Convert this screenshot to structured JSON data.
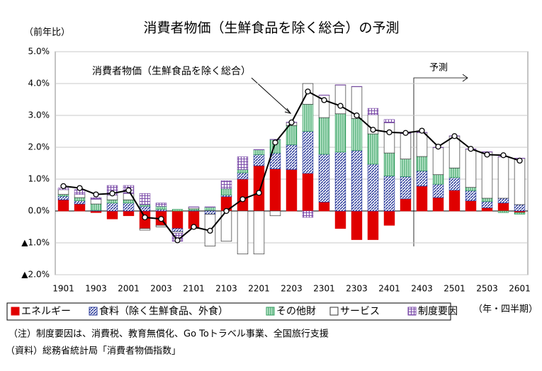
{
  "chart_data": {
    "type": "stacked_bar_line",
    "title": "消費者物価（生鮮食品を除く総合）の予測",
    "y_axis_label": "（前年比）",
    "x_axis_label": "（年・四半期）",
    "annotations": {
      "line_label": "消費者物価（生鮮食品を除く総合）",
      "forecast": "予測"
    },
    "notes": [
      "（注）制度要因は、消費税、教育無償化、Go Toトラベル事業、全国旅行支援",
      "（資料）総務省統計局「消費者物価指数」"
    ],
    "categories": [
      "1901",
      null,
      "1903",
      null,
      "2001",
      null,
      "2003",
      null,
      "2101",
      null,
      "2103",
      null,
      "2201",
      null,
      "2203",
      null,
      "2301",
      null,
      "2303",
      null,
      "2401",
      null,
      "2403",
      null,
      "2501",
      null,
      "2503",
      null,
      "2601"
    ],
    "ylim": [
      -2,
      5
    ],
    "yticks": [
      {
        "value": 5,
        "label": "5.0%"
      },
      {
        "value": 4,
        "label": "4.0%"
      },
      {
        "value": 3,
        "label": "3.0%"
      },
      {
        "value": 2,
        "label": "2.0%"
      },
      {
        "value": 1,
        "label": "1.0%"
      },
      {
        "value": 0,
        "label": "0.0%"
      },
      {
        "value": -1,
        "label": "▲1.0%"
      },
      {
        "value": -2,
        "label": "▲2.0%"
      }
    ],
    "grid": true,
    "series": [
      {
        "name": "エネルギー",
        "color": "#e00000",
        "pattern": "solid",
        "values": [
          0.35,
          0.22,
          -0.05,
          -0.25,
          -0.15,
          -0.55,
          -0.45,
          -0.55,
          -0.55,
          0.02,
          0.45,
          1.0,
          1.42,
          1.32,
          1.3,
          1.18,
          0.28,
          -0.55,
          -0.9,
          -0.9,
          -0.45,
          0.38,
          0.78,
          0.42,
          0.65,
          0.32,
          0.1,
          0.25,
          -0.05
        ]
      },
      {
        "name": "食料（除く生鮮食品、外食）",
        "color": "#2a3a9a",
        "pattern": "diagonal",
        "values": [
          0.12,
          0.1,
          0.02,
          0.25,
          0.25,
          0.15,
          0.05,
          -0.1,
          0.02,
          -0.1,
          0.05,
          0.2,
          0.35,
          0.5,
          0.78,
          1.32,
          1.5,
          1.85,
          1.9,
          1.47,
          1.1,
          0.7,
          0.48,
          0.42,
          0.4,
          0.32,
          0.2,
          0.15,
          0.2
        ]
      },
      {
        "name": "その他財",
        "color": "#2e9a5a",
        "pattern": "vertical",
        "values": [
          0.05,
          0.1,
          0.2,
          0.1,
          0.1,
          0.05,
          0.1,
          0.05,
          0.05,
          0.1,
          0.2,
          0.1,
          0.15,
          0.42,
          0.6,
          0.85,
          1.15,
          1.2,
          1.0,
          0.95,
          0.72,
          0.55,
          0.45,
          0.3,
          0.3,
          0.1,
          0.1,
          -0.05,
          -0.05
        ]
      },
      {
        "name": "サービス",
        "color": "#ffffff",
        "pattern": "solid",
        "values": [
          0.15,
          0.1,
          0.15,
          0.15,
          0.2,
          -0.05,
          -0.05,
          -0.05,
          0.05,
          -1.0,
          -0.95,
          -1.35,
          -1.35,
          -0.15,
          0.1,
          0.65,
          0.7,
          0.9,
          1.0,
          0.6,
          0.95,
          0.8,
          0.75,
          0.85,
          1.0,
          1.2,
          1.45,
          1.3,
          1.45
        ]
      },
      {
        "name": "制度要因",
        "color": "#7a4aa8",
        "pattern": "grid",
        "values": [
          0.05,
          0.15,
          0.05,
          0.3,
          0.25,
          0.35,
          0.1,
          -0.25,
          0.01,
          0.01,
          0.25,
          0.4,
          0.01,
          0.01,
          0.01,
          -0.2,
          0.01,
          0.01,
          0.01,
          0.2,
          0.1,
          0.01,
          0.01,
          0.01,
          0.01,
          0.01,
          0.01,
          0.01,
          0.01
        ]
      }
    ],
    "line": {
      "color": "#000000",
      "values": [
        0.78,
        0.72,
        0.52,
        0.55,
        0.65,
        -0.2,
        -0.25,
        -0.92,
        -0.5,
        -0.62,
        0.0,
        0.37,
        0.57,
        2.15,
        2.78,
        3.75,
        3.48,
        3.3,
        3.0,
        2.55,
        2.47,
        2.45,
        2.52,
        2.02,
        2.35,
        1.95,
        1.77,
        1.75,
        1.58
      ]
    }
  }
}
